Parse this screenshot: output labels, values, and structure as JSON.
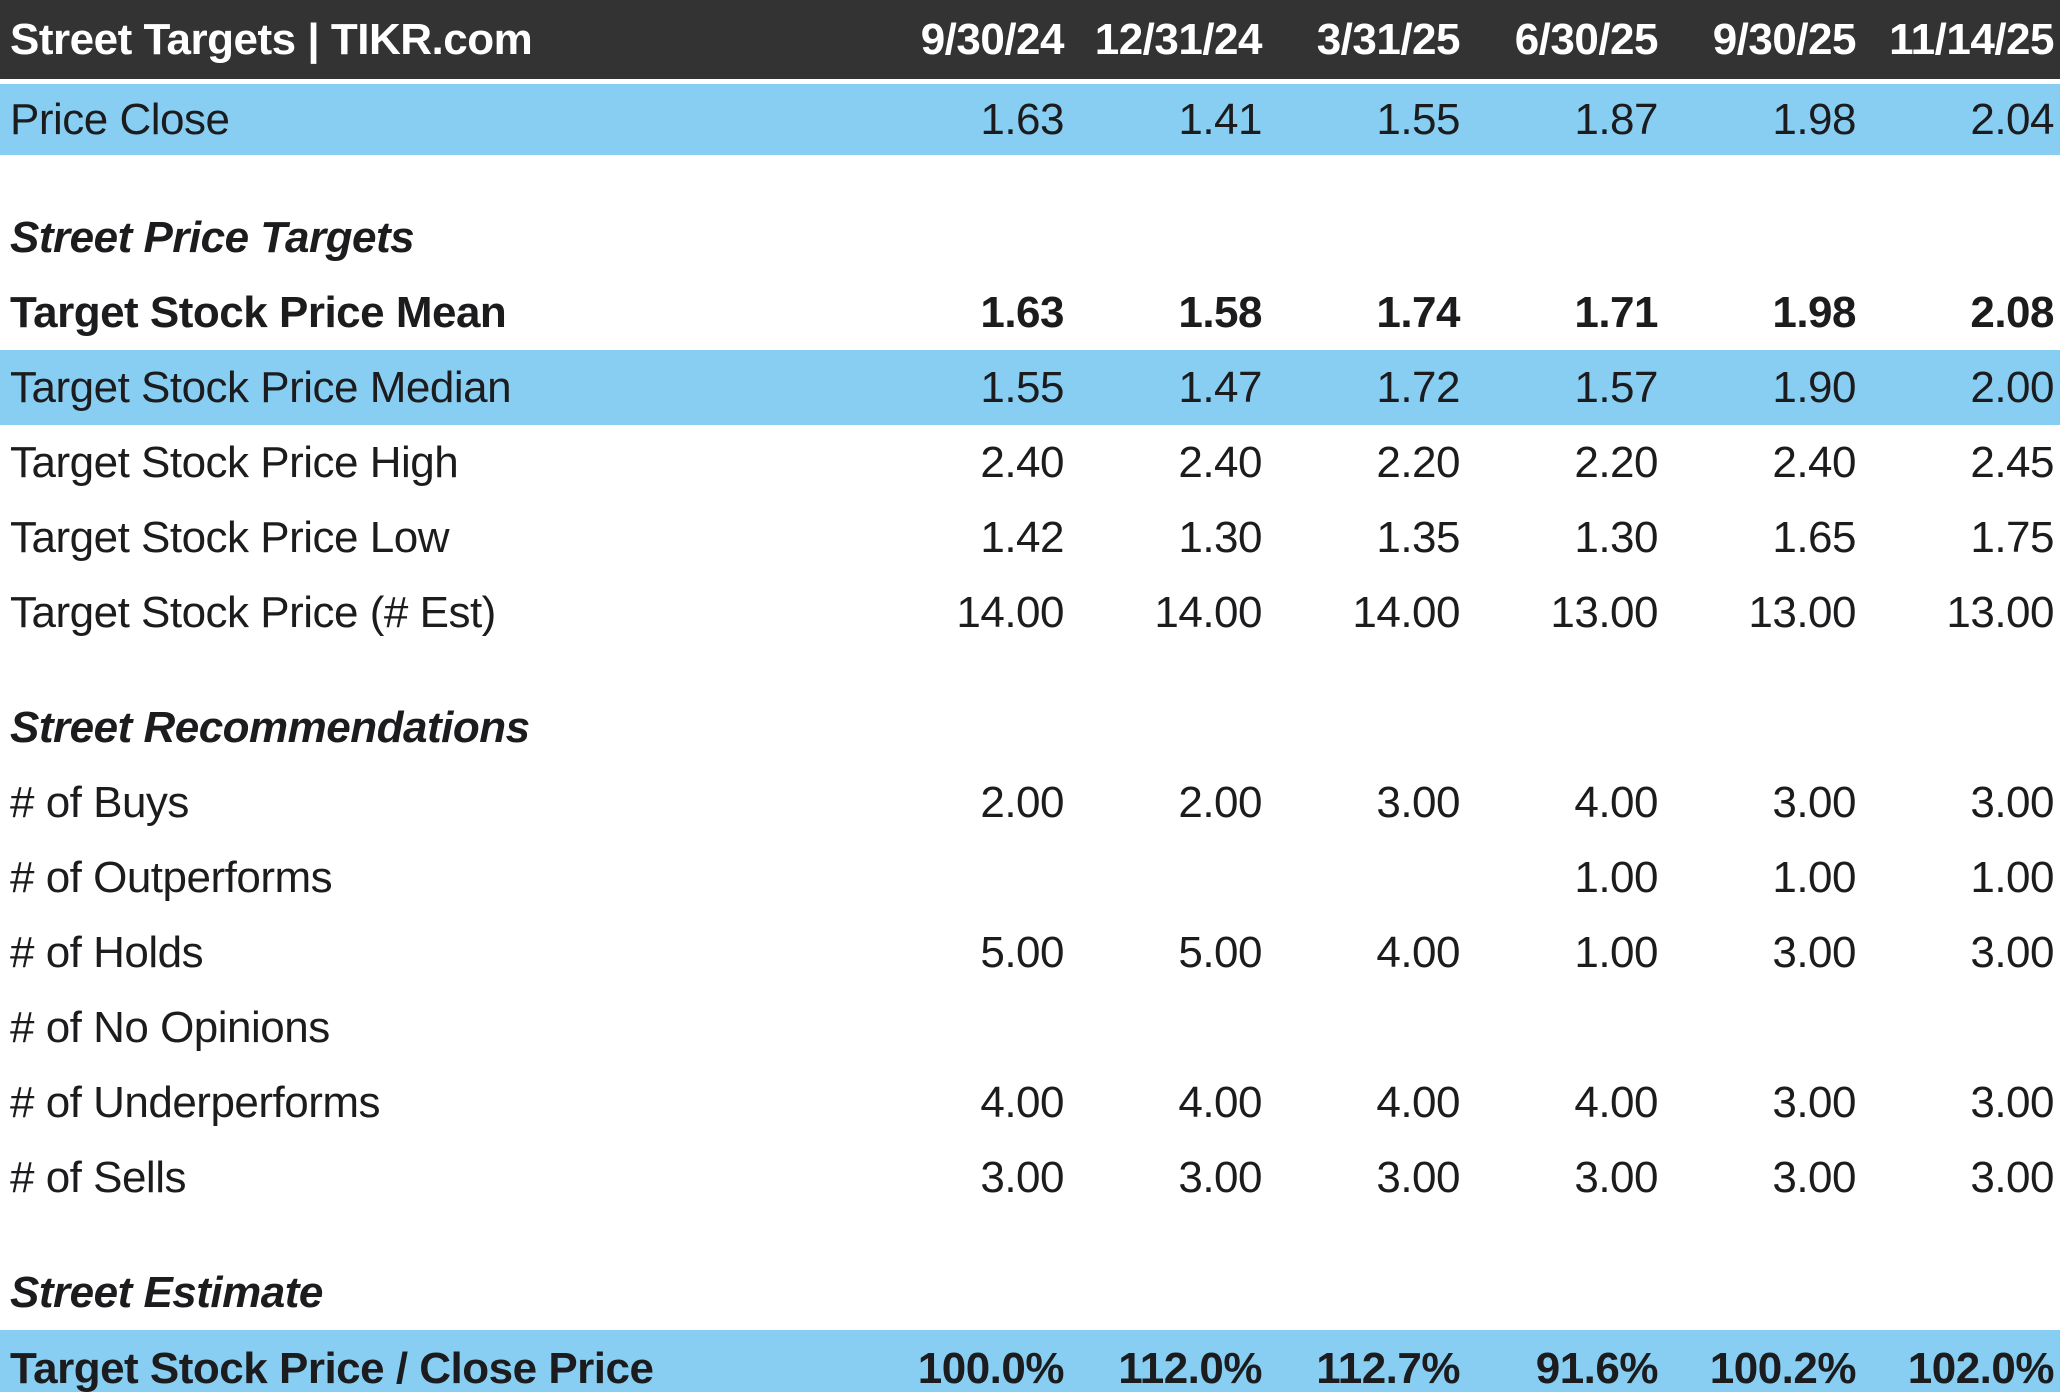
{
  "header": {
    "title": "Street Targets | TIKR.com",
    "columns": [
      "9/30/24",
      "12/31/24",
      "3/31/25",
      "6/30/25",
      "9/30/25",
      "11/14/25"
    ]
  },
  "colors": {
    "header_bg": "#333333",
    "header_text": "#ffffff",
    "highlight_row_bg": "#87cef2",
    "body_text": "#1c1c1e"
  },
  "table": {
    "rows": [
      {
        "label": "Price Close",
        "type": "data",
        "highlight": true,
        "bold": false,
        "first": true,
        "values": [
          "1.63",
          "1.41",
          "1.55",
          "1.87",
          "1.98",
          "2.04"
        ]
      },
      {
        "label": "Street Price Targets",
        "type": "section"
      },
      {
        "label": "Target Stock Price Mean",
        "type": "data",
        "highlight": false,
        "bold": true,
        "values": [
          "1.63",
          "1.58",
          "1.74",
          "1.71",
          "1.98",
          "2.08"
        ]
      },
      {
        "label": "Target Stock Price Median",
        "type": "data",
        "highlight": true,
        "bold": false,
        "values": [
          "1.55",
          "1.47",
          "1.72",
          "1.57",
          "1.90",
          "2.00"
        ]
      },
      {
        "label": "Target Stock Price High",
        "type": "data",
        "highlight": false,
        "bold": false,
        "values": [
          "2.40",
          "2.40",
          "2.20",
          "2.20",
          "2.40",
          "2.45"
        ]
      },
      {
        "label": "Target Stock Price Low",
        "type": "data",
        "highlight": false,
        "bold": false,
        "values": [
          "1.42",
          "1.30",
          "1.35",
          "1.30",
          "1.65",
          "1.75"
        ]
      },
      {
        "label": "Target Stock Price (# Est)",
        "type": "data",
        "highlight": false,
        "bold": false,
        "values": [
          "14.00",
          "14.00",
          "14.00",
          "13.00",
          "13.00",
          "13.00"
        ]
      },
      {
        "type": "spacer"
      },
      {
        "label": "Street Recommendations",
        "type": "section"
      },
      {
        "label": "# of Buys",
        "type": "data",
        "highlight": false,
        "bold": false,
        "values": [
          "2.00",
          "2.00",
          "3.00",
          "4.00",
          "3.00",
          "3.00"
        ]
      },
      {
        "label": "# of Outperforms",
        "type": "data",
        "highlight": false,
        "bold": false,
        "values": [
          "",
          "",
          "",
          "1.00",
          "1.00",
          "1.00"
        ]
      },
      {
        "label": "# of Holds",
        "type": "data",
        "highlight": false,
        "bold": false,
        "values": [
          "5.00",
          "5.00",
          "4.00",
          "1.00",
          "3.00",
          "3.00"
        ]
      },
      {
        "label": "# of No Opinions",
        "type": "data",
        "highlight": false,
        "bold": false,
        "values": [
          "",
          "",
          "",
          "",
          "",
          ""
        ]
      },
      {
        "label": "# of Underperforms",
        "type": "data",
        "highlight": false,
        "bold": false,
        "values": [
          "4.00",
          "4.00",
          "4.00",
          "4.00",
          "3.00",
          "3.00"
        ]
      },
      {
        "label": "# of Sells",
        "type": "data",
        "highlight": false,
        "bold": false,
        "values": [
          "3.00",
          "3.00",
          "3.00",
          "3.00",
          "3.00",
          "3.00"
        ]
      },
      {
        "type": "spacer"
      },
      {
        "label": "Street Estimate",
        "type": "section"
      },
      {
        "label": "Target Stock Price / Close Price",
        "type": "data",
        "highlight": true,
        "bold": true,
        "final": true,
        "values": [
          "100.0%",
          "112.0%",
          "112.7%",
          "91.6%",
          "100.2%",
          "102.0%"
        ]
      }
    ]
  }
}
